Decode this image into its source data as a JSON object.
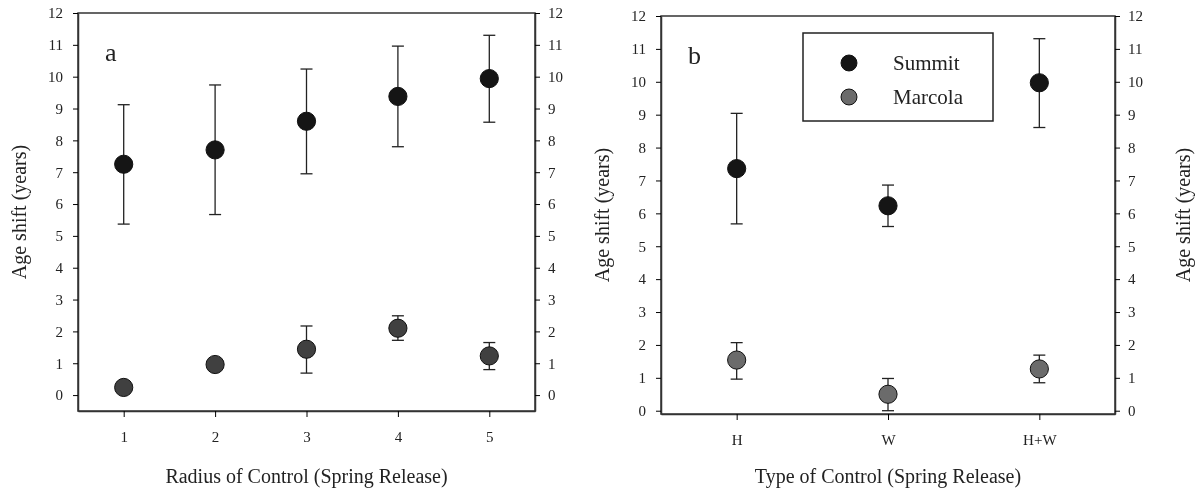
{
  "chart_data": [
    {
      "type": "scatter",
      "xlabel": "Radius of Control (Spring Release)",
      "ylabel": "Age shift (years)",
      "annotations": [
        "a"
      ],
      "marker": "circle",
      "x": [
        1,
        2,
        3,
        4,
        5
      ],
      "xlim": [
        0.5,
        5.5
      ],
      "xticks": [
        1,
        2,
        3,
        4,
        5
      ],
      "ylim": [
        -0.5,
        12
      ],
      "yticks": [
        0,
        1,
        2,
        3,
        4,
        5,
        6,
        7,
        8,
        9,
        10,
        11,
        12
      ],
      "y2lim": [
        -0.5,
        12
      ],
      "y2ticks": [
        0,
        1,
        2,
        3,
        4,
        5,
        6,
        7,
        8,
        9,
        10,
        11,
        12
      ],
      "series": [
        {
          "color": "#151515",
          "values": [
            7.25,
            7.7,
            8.6,
            9.38,
            9.94
          ],
          "errors": [
            [
              5.37,
              9.12
            ],
            [
              5.67,
              9.74
            ],
            [
              6.95,
              10.24
            ],
            [
              7.8,
              10.96
            ],
            [
              8.57,
              11.3
            ]
          ]
        },
        {
          "color": "#404040",
          "values": [
            0.24,
            0.96,
            1.44,
            2.1,
            1.23
          ],
          "errors": [
            null,
            null,
            [
              0.69,
              2.17
            ],
            [
              1.72,
              2.49
            ],
            [
              0.8,
              1.65
            ]
          ]
        }
      ]
    },
    {
      "type": "scatter",
      "xlabel": "Type of Control (Spring Release)",
      "ylabel": "Age shift (years)",
      "y2label": "Age shift (years)",
      "annotations": [
        "b"
      ],
      "marker": "circle",
      "legend": "top",
      "categories": [
        "H",
        "W",
        "H+W"
      ],
      "ylim": [
        -0.1,
        12
      ],
      "yticks": [
        0,
        1,
        2,
        3,
        4,
        5,
        6,
        7,
        8,
        9,
        10,
        11,
        12
      ],
      "y2lim": [
        -0.1,
        12
      ],
      "y2ticks": [
        0,
        1,
        2,
        3,
        4,
        5,
        6,
        7,
        8,
        9,
        10,
        11,
        12
      ],
      "series": [
        {
          "name": "Summit",
          "color": "#151515",
          "values": [
            7.36,
            6.23,
            9.97
          ],
          "errors": [
            [
              5.68,
              9.04
            ],
            [
              5.6,
              6.86
            ],
            [
              8.61,
              11.31
            ]
          ]
        },
        {
          "name": "Marcola",
          "color": "#6b6b6b",
          "values": [
            1.54,
            0.5,
            1.27
          ],
          "errors": [
            [
              0.96,
              2.07
            ],
            [
              0,
              0.98
            ],
            [
              0.85,
              1.69
            ]
          ]
        }
      ]
    }
  ]
}
